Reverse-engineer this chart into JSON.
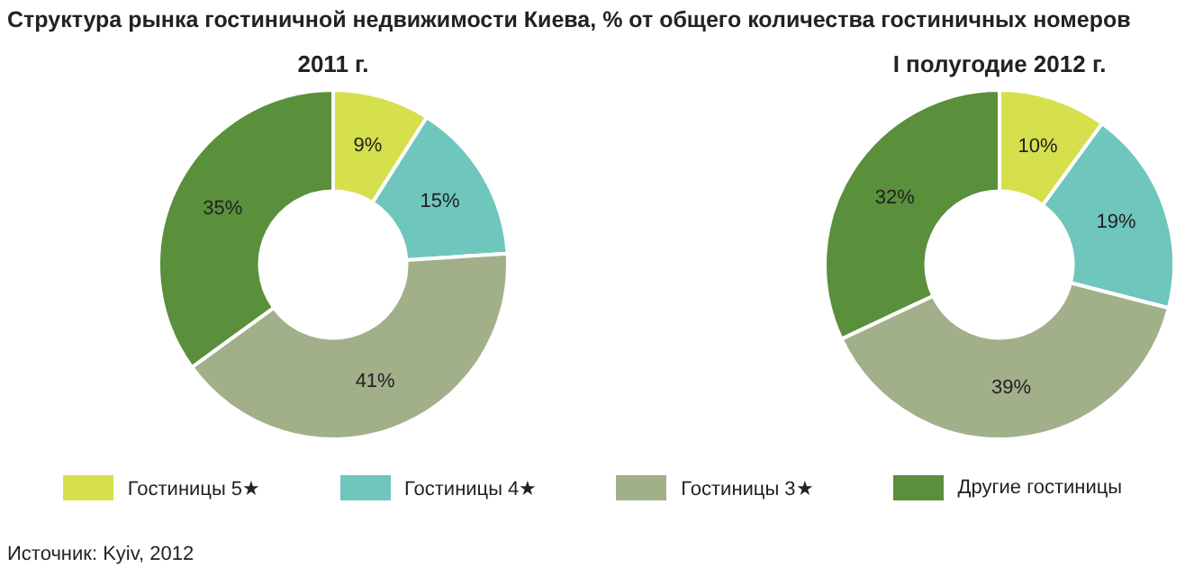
{
  "chart_data": [
    {
      "type": "donut",
      "title": "Структура рынка гостиничной недвижимости Киева, % от общего количества гостиничных номеров",
      "subtitle": "2011 г.",
      "categories": [
        "Гостиницы 5★",
        "Гостиницы 4★",
        "Гостиницы 3★",
        "Другие гостиницы"
      ],
      "values": [
        9,
        15,
        41,
        35
      ],
      "value_labels": [
        "9%",
        "15%",
        "41%",
        "35%"
      ],
      "colors": [
        "#d5e04c",
        "#6ec6bd",
        "#a2b08a",
        "#5a8f3b"
      ],
      "legend": "bottom",
      "annotations": [
        "Источник: Kyiv, 2012"
      ]
    },
    {
      "type": "donut",
      "subtitle": "I полугодие 2012 г.",
      "categories": [
        null,
        null,
        null,
        null
      ],
      "values": [
        10,
        19,
        39,
        32
      ],
      "value_labels": [
        "10%",
        "19%",
        "39%",
        "32%"
      ],
      "colors": [
        "#d5e04c",
        "#6ec6bd",
        "#a2b08a",
        "#5a8f3b"
      ]
    }
  ]
}
